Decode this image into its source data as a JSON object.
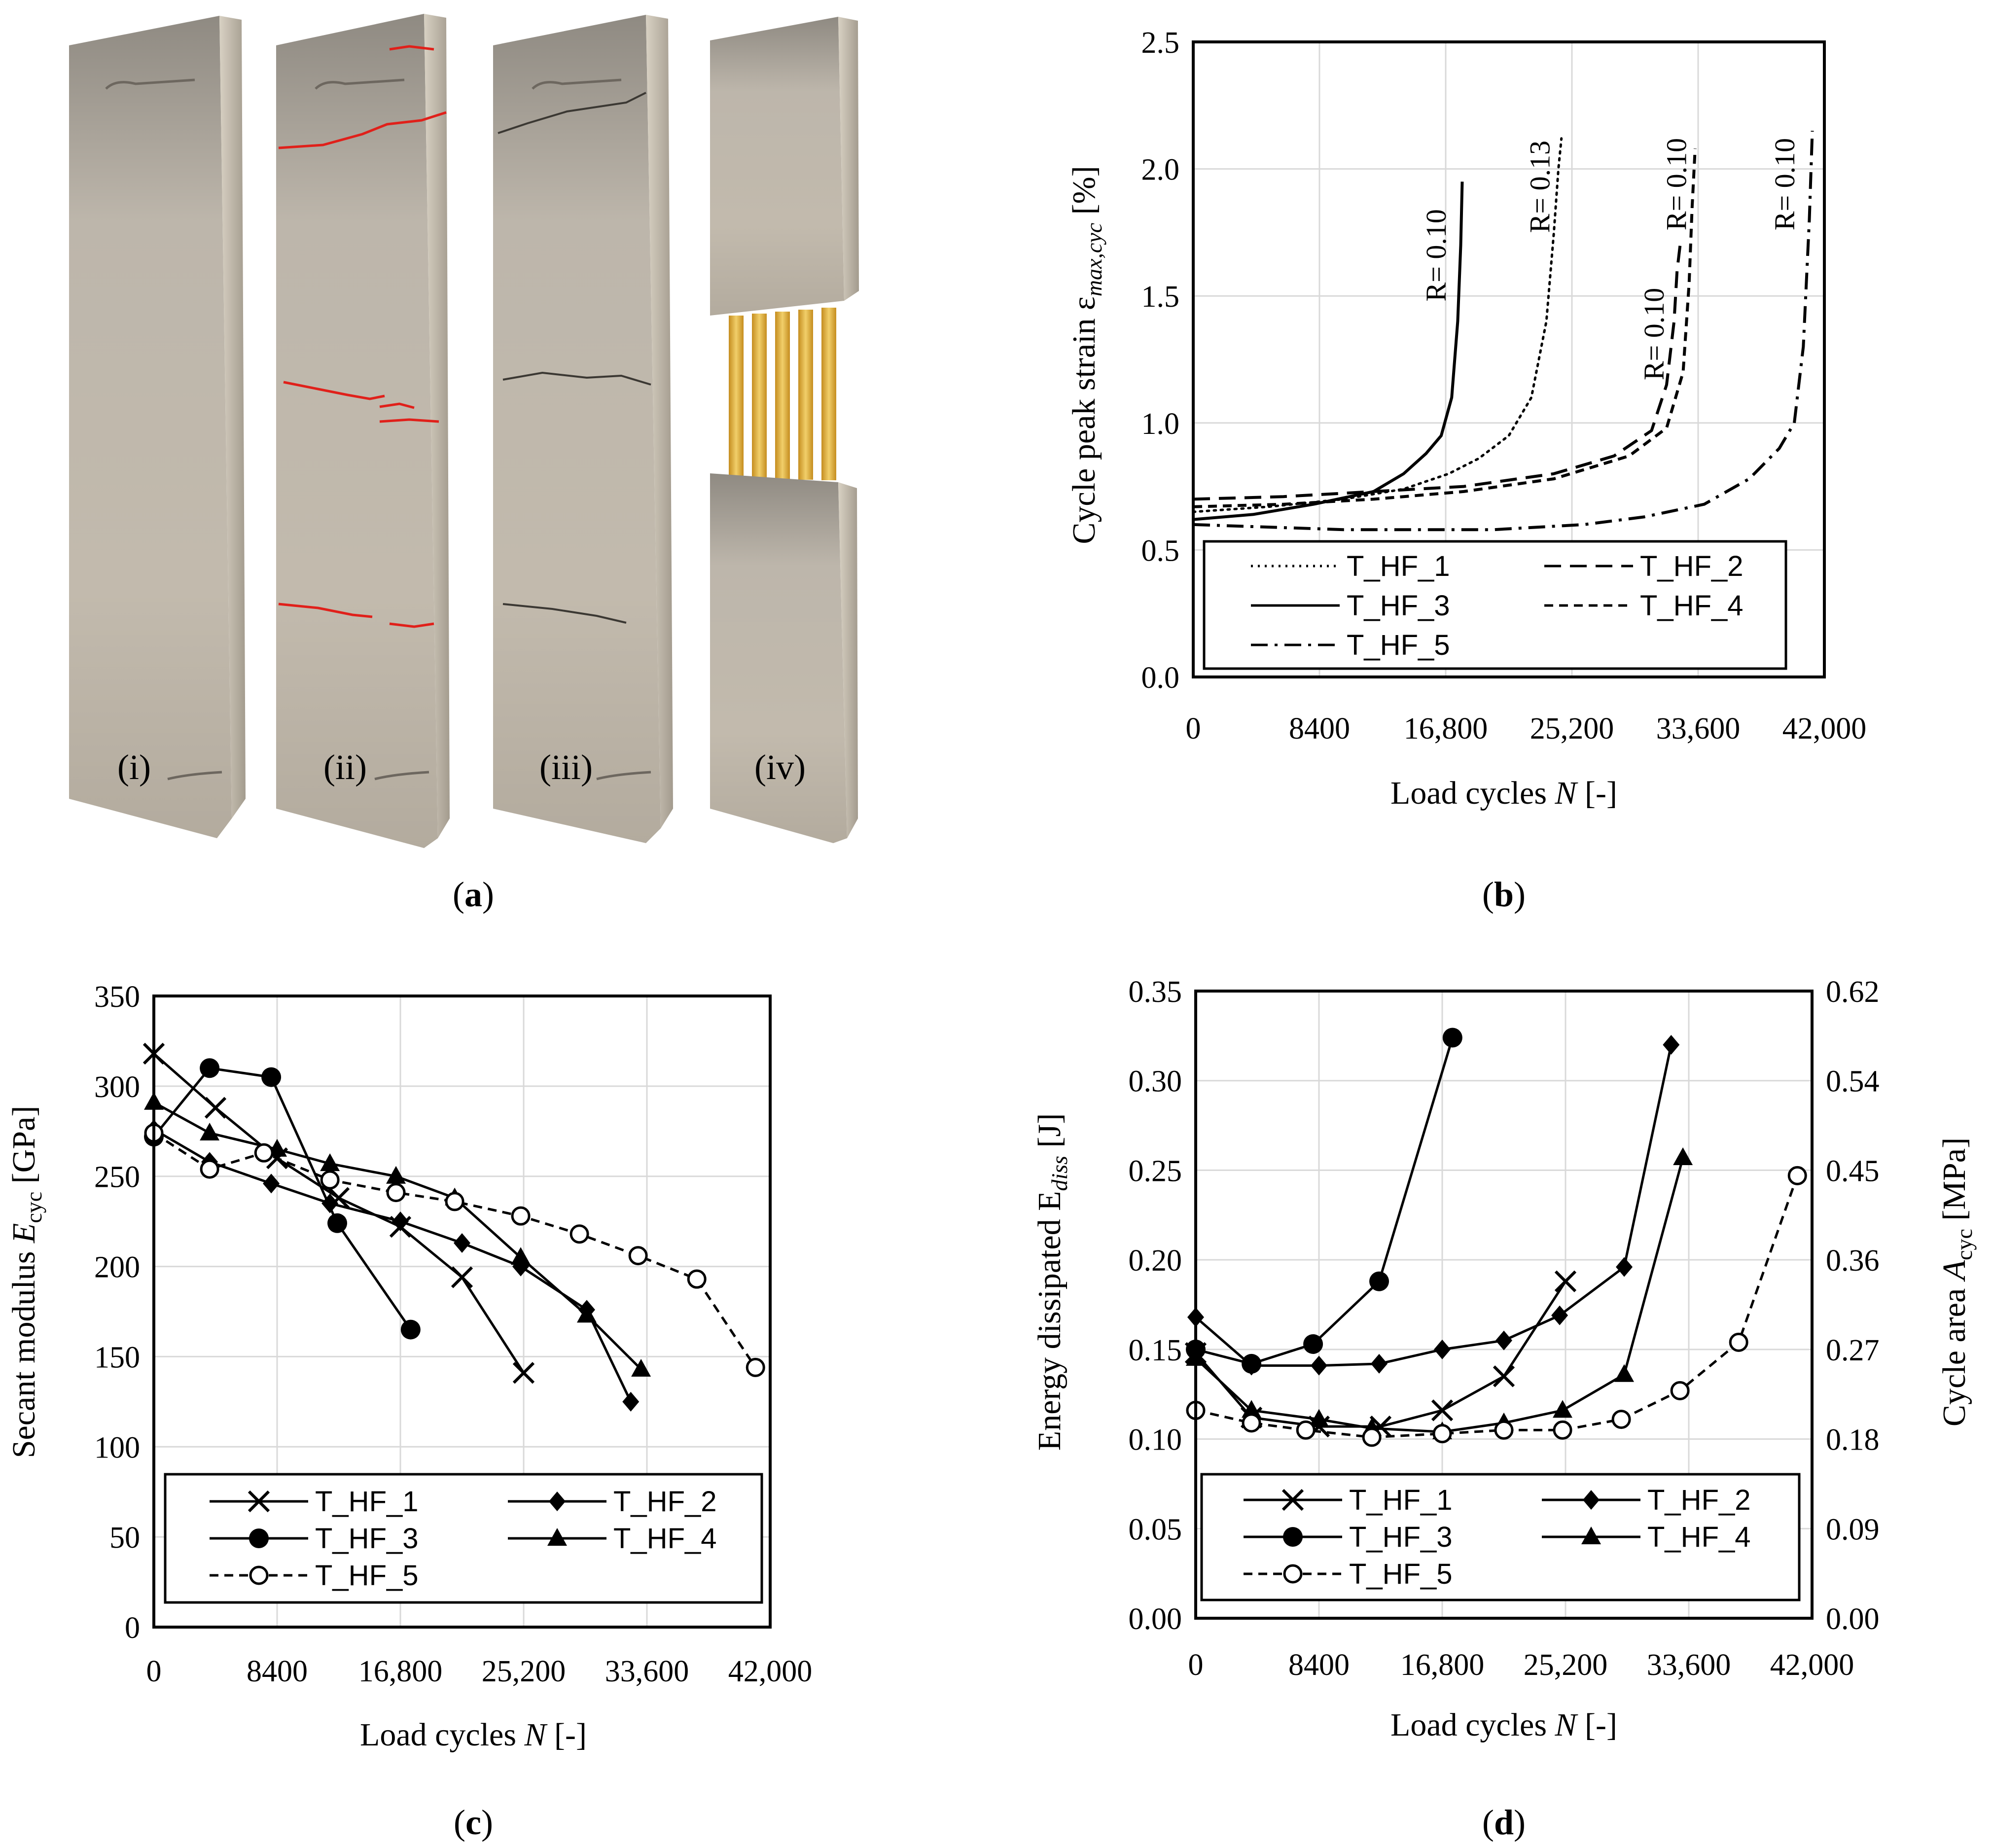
{
  "captions": {
    "a": "(a)",
    "b": "(b)",
    "c": "(c)",
    "d": "(d)",
    "a_letter": "a",
    "b_letter": "b",
    "c_letter": "c",
    "d_letter": "d"
  },
  "photo": {
    "labels": [
      "(i)",
      "(ii)",
      "(iii)",
      "(iv)"
    ],
    "colors": {
      "concrete": "#b9b1a5",
      "crack_marker": "#e0201a",
      "yarn": "#e3b43c"
    }
  },
  "chart_data": [
    {
      "id": "b",
      "type": "line",
      "ylabel_main": "Cycle peak strain ε",
      "ylabel_sub": "max,cyc",
      "ylabel_unit": " [%]",
      "xlabel_main": "Load cycles ",
      "xlabel_var": "N",
      "xlabel_unit": " [-]",
      "xlim": [
        0,
        42000
      ],
      "ylim": [
        0.0,
        2.5
      ],
      "xticks": [
        0,
        8400,
        16800,
        25200,
        33600,
        42000
      ],
      "xtick_labels": [
        "0",
        "8400",
        "16,800",
        "25,200",
        "33,600",
        "42,000"
      ],
      "yticks": [
        0.0,
        0.5,
        1.0,
        1.5,
        2.0,
        2.5
      ],
      "ytick_labels": [
        "0.0",
        "0.5",
        "1.0",
        "1.5",
        "2.0",
        "2.5"
      ],
      "legend": [
        "T_HF_1",
        "T_HF_2",
        "T_HF_3",
        "T_HF_4",
        "T_HF_5"
      ],
      "series": [
        {
          "name": "T_HF_1",
          "style": "dotted",
          "x": [
            0,
            5000,
            10000,
            14000,
            17000,
            19000,
            21000,
            22500,
            23500,
            24000,
            24300,
            24500
          ],
          "y": [
            0.65,
            0.67,
            0.7,
            0.74,
            0.8,
            0.86,
            0.95,
            1.1,
            1.4,
            1.75,
            2.0,
            2.12
          ]
        },
        {
          "name": "T_HF_2",
          "style": "dashed",
          "x": [
            0,
            6000,
            12000,
            18000,
            24000,
            28000,
            30500,
            31500,
            32000,
            32200,
            32400
          ],
          "y": [
            0.7,
            0.71,
            0.73,
            0.75,
            0.8,
            0.87,
            0.97,
            1.15,
            1.4,
            1.6,
            1.7
          ]
        },
        {
          "name": "T_HF_3",
          "style": "solid",
          "x": [
            0,
            4000,
            8000,
            12000,
            14000,
            15500,
            16500,
            17200,
            17600,
            17800,
            17900
          ],
          "y": [
            0.62,
            0.64,
            0.68,
            0.73,
            0.8,
            0.88,
            0.95,
            1.1,
            1.4,
            1.7,
            1.95
          ]
        },
        {
          "name": "T_HF_4",
          "style": "short-dashed",
          "x": [
            0,
            6000,
            12000,
            18000,
            24000,
            29000,
            31500,
            32600,
            33000,
            33200,
            33400
          ],
          "y": [
            0.67,
            0.68,
            0.7,
            0.73,
            0.78,
            0.87,
            0.98,
            1.2,
            1.55,
            1.85,
            2.08
          ]
        },
        {
          "name": "T_HF_5",
          "style": "dash-dot",
          "x": [
            0,
            10000,
            20000,
            26000,
            30000,
            34000,
            37000,
            39000,
            40000,
            40600,
            41000,
            41200
          ],
          "y": [
            0.6,
            0.58,
            0.58,
            0.6,
            0.63,
            0.68,
            0.78,
            0.9,
            1.0,
            1.3,
            1.8,
            2.15
          ]
        }
      ],
      "annotations": [
        {
          "text": "R= 0.10",
          "x": 16800,
          "y": 1.66
        },
        {
          "text": "R= 0.13",
          "x": 23700,
          "y": 1.93
        },
        {
          "text": "R= 0.10",
          "x": 31300,
          "y": 1.35
        },
        {
          "text": "R= 0.10",
          "x": 32800,
          "y": 1.94
        },
        {
          "text": "R= 0.10",
          "x": 40000,
          "y": 1.94
        }
      ]
    },
    {
      "id": "c",
      "type": "line",
      "ylabel_main": "Secant modulus ",
      "ylabel_var": "E",
      "ylabel_sub": "cyc",
      "ylabel_unit": " [GPa]",
      "xlabel_main": "Load cycles ",
      "xlabel_var": "N",
      "xlabel_unit": " [-]",
      "xlim": [
        0,
        42000
      ],
      "ylim": [
        0,
        350
      ],
      "xticks": [
        0,
        8400,
        16800,
        25200,
        33600,
        42000
      ],
      "xtick_labels": [
        "0",
        "8400",
        "16,800",
        "25,200",
        "33,600",
        "42,000"
      ],
      "yticks": [
        0,
        50,
        100,
        150,
        200,
        250,
        300,
        350
      ],
      "ytick_labels": [
        "0",
        "50",
        "100",
        "150",
        "200",
        "250",
        "300",
        "350"
      ],
      "legend": [
        "T_HF_1",
        "T_HF_2",
        "T_HF_3",
        "T_HF_4",
        "T_HF_5"
      ],
      "series": [
        {
          "name": "T_HF_1",
          "marker": "x",
          "dashed": false,
          "x": [
            0,
            4200,
            8400,
            12600,
            16800,
            21000,
            25200
          ],
          "y": [
            318,
            288,
            260,
            238,
            222,
            194,
            141
          ]
        },
        {
          "name": "T_HF_2",
          "marker": "diamond",
          "dashed": false,
          "x": [
            0,
            3800,
            8000,
            12000,
            16800,
            21000,
            25000,
            29500,
            32500
          ],
          "y": [
            276,
            258,
            246,
            235,
            225,
            213,
            200,
            176,
            125
          ]
        },
        {
          "name": "T_HF_3",
          "marker": "circle",
          "dashed": false,
          "x": [
            0,
            3800,
            8000,
            12500,
            17500
          ],
          "y": [
            272,
            310,
            305,
            224,
            165
          ]
        },
        {
          "name": "T_HF_4",
          "marker": "triangle",
          "dashed": false,
          "x": [
            0,
            3800,
            8400,
            12000,
            16500,
            20500,
            25000,
            29500,
            33200
          ],
          "y": [
            291,
            274,
            265,
            257,
            250,
            238,
            205,
            173,
            143
          ]
        },
        {
          "name": "T_HF_5",
          "marker": "open-circle",
          "dashed": true,
          "x": [
            0,
            3800,
            7500,
            12000,
            16500,
            20500,
            25000,
            29000,
            33000,
            37000,
            41000
          ],
          "y": [
            274,
            254,
            263,
            248,
            241,
            236,
            228,
            218,
            206,
            193,
            144
          ]
        }
      ]
    },
    {
      "id": "d",
      "type": "line",
      "ylabel_main": "Energy dissipated E",
      "ylabel_sub": "diss",
      "ylabel_unit": " [J]",
      "y2label_main": "Cycle area ",
      "y2label_var": "A",
      "y2label_sub": "cyc",
      "y2label_unit": " [MPa]",
      "xlabel_main": "Load cycles ",
      "xlabel_var": "N",
      "xlabel_unit": " [-]",
      "xlim": [
        0,
        42000
      ],
      "ylim": [
        0.0,
        0.35
      ],
      "y2lim": [
        0.0,
        0.62
      ],
      "xticks": [
        0,
        8400,
        16800,
        25200,
        33600,
        42000
      ],
      "xtick_labels": [
        "0",
        "8400",
        "16,800",
        "25,200",
        "33,600",
        "42,000"
      ],
      "yticks": [
        0.0,
        0.05,
        0.1,
        0.15,
        0.2,
        0.25,
        0.3,
        0.35
      ],
      "ytick_labels": [
        "0.00",
        "0.05",
        "0.10",
        "0.15",
        "0.20",
        "0.25",
        "0.30",
        "0.35"
      ],
      "y2tick_labels": [
        "0.00",
        "0.09",
        "0.18",
        "0.27",
        "0.36",
        "0.45",
        "0.54",
        "0.62"
      ],
      "legend": [
        "T_HF_1",
        "T_HF_2",
        "T_HF_3",
        "T_HF_4",
        "T_HF_5"
      ],
      "series": [
        {
          "name": "T_HF_1",
          "marker": "x",
          "dashed": false,
          "x": [
            0,
            3800,
            8400,
            12600,
            16800,
            21000,
            25200
          ],
          "y": [
            0.148,
            0.112,
            0.107,
            0.107,
            0.116,
            0.135,
            0.188
          ]
        },
        {
          "name": "T_HF_2",
          "marker": "diamond",
          "dashed": false,
          "x": [
            0,
            3800,
            8400,
            12500,
            16800,
            21000,
            24800,
            29200,
            32400
          ],
          "y": [
            0.168,
            0.141,
            0.141,
            0.142,
            0.15,
            0.155,
            0.169,
            0.196,
            0.32
          ]
        },
        {
          "name": "T_HF_3",
          "marker": "circle",
          "dashed": false,
          "x": [
            0,
            3800,
            8000,
            12500,
            17500
          ],
          "y": [
            0.15,
            0.142,
            0.153,
            0.188,
            0.324
          ]
        },
        {
          "name": "T_HF_4",
          "marker": "triangle",
          "dashed": false,
          "x": [
            0,
            3800,
            8400,
            12000,
            16800,
            21000,
            25000,
            29200,
            33200
          ],
          "y": [
            0.145,
            0.116,
            0.111,
            0.106,
            0.104,
            0.109,
            0.116,
            0.136,
            0.257
          ]
        },
        {
          "name": "T_HF_5",
          "marker": "open-circle",
          "dashed": true,
          "x": [
            0,
            3800,
            7500,
            12000,
            16800,
            21000,
            25000,
            29000,
            33000,
            37000,
            41000
          ],
          "y": [
            0.116,
            0.109,
            0.105,
            0.101,
            0.103,
            0.105,
            0.105,
            0.111,
            0.127,
            0.154,
            0.247
          ]
        }
      ]
    }
  ]
}
